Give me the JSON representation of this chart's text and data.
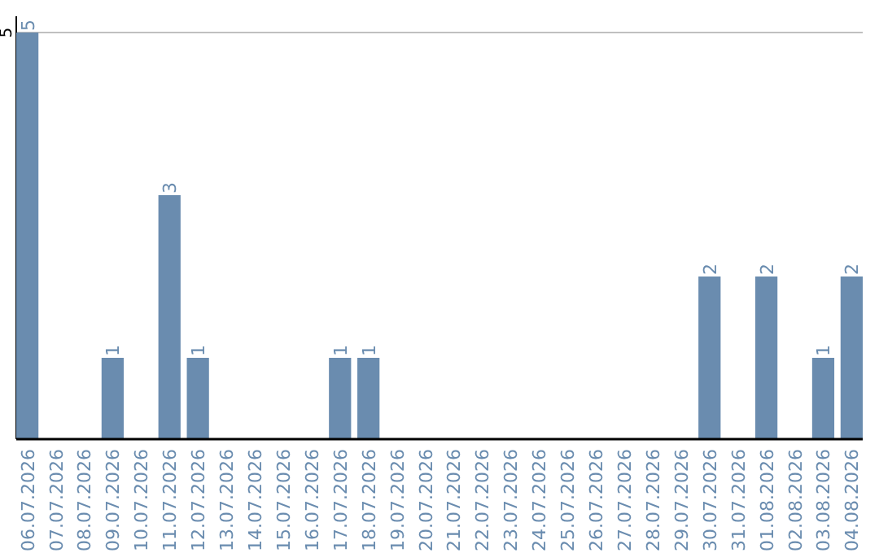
{
  "chart_data": {
    "type": "bar",
    "categories": [
      "06.07.2026",
      "07.07.2026",
      "08.07.2026",
      "09.07.2026",
      "10.07.2026",
      "11.07.2026",
      "12.07.2026",
      "13.07.2026",
      "14.07.2026",
      "15.07.2026",
      "16.07.2026",
      "17.07.2026",
      "18.07.2026",
      "19.07.2026",
      "20.07.2026",
      "21.07.2026",
      "22.07.2026",
      "23.07.2026",
      "24.07.2026",
      "25.07.2026",
      "26.07.2026",
      "27.07.2026",
      "28.07.2026",
      "29.07.2026",
      "30.07.2026",
      "31.07.2026",
      "01.08.2026",
      "02.08.2026",
      "03.08.2026",
      "04.08.2026"
    ],
    "values": [
      5,
      0,
      0,
      1,
      0,
      3,
      1,
      0,
      0,
      0,
      0,
      1,
      1,
      0,
      0,
      0,
      0,
      0,
      0,
      0,
      0,
      0,
      0,
      0,
      2,
      0,
      2,
      0,
      1,
      2
    ],
    "value_labels": [
      "5",
      null,
      null,
      "1",
      null,
      "3",
      "1",
      null,
      null,
      null,
      null,
      "1",
      "1",
      null,
      null,
      null,
      null,
      null,
      null,
      null,
      null,
      null,
      null,
      null,
      "2",
      null,
      "2",
      null,
      "1",
      "2"
    ],
    "color": "#6a8caf",
    "ylim": [
      0,
      5.2
    ],
    "yticks": [
      5
    ],
    "grid": "y"
  }
}
